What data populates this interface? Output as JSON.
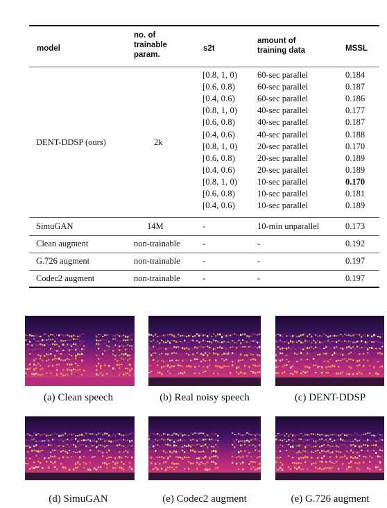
{
  "table": {
    "headers": {
      "model": "model",
      "params": [
        "no. of",
        "trainable",
        "param."
      ],
      "s2t": "s2t",
      "amount": [
        "amount of",
        "training data"
      ],
      "mssl": "MSSL"
    },
    "dent": {
      "model": "DENT-DDSP (ours)",
      "params": "2k",
      "rows": [
        {
          "s2t": "[0.8, 1, 0)",
          "amount": "60-sec parallel",
          "mssl": "0.184",
          "bold": false
        },
        {
          "s2t": "[0.6, 0.8)",
          "amount": "60-sec parallel",
          "mssl": "0.187",
          "bold": false
        },
        {
          "s2t": "[0.4, 0.6)",
          "amount": "60-sec parallel",
          "mssl": "0.186",
          "bold": false
        },
        {
          "s2t": "[0.8, 1, 0)",
          "amount": "40-sec parallel",
          "mssl": "0.177",
          "bold": false
        },
        {
          "s2t": "[0.6, 0.8)",
          "amount": "40-sec parallel",
          "mssl": "0.187",
          "bold": false
        },
        {
          "s2t": "[0.4, 0.6)",
          "amount": "40-sec parallel",
          "mssl": "0.188",
          "bold": false
        },
        {
          "s2t": "[0.8, 1, 0)",
          "amount": "20-sec parallel",
          "mssl": "0.170",
          "bold": false
        },
        {
          "s2t": "[0.6, 0.8)",
          "amount": "20-sec parallel",
          "mssl": "0.189",
          "bold": false
        },
        {
          "s2t": "[0.4, 0.6)",
          "amount": "20-sec parallel",
          "mssl": "0.189",
          "bold": false
        },
        {
          "s2t": "[0.8, 1, 0)",
          "amount": "10-sec parallel",
          "mssl": "0.170",
          "bold": true
        },
        {
          "s2t": "[0.6, 0.8)",
          "amount": "10-sec parallel",
          "mssl": "0.181",
          "bold": false
        },
        {
          "s2t": "[0.4, 0.6)",
          "amount": "10-sec parallel",
          "mssl": "0.189",
          "bold": false
        }
      ]
    },
    "others": [
      {
        "model": "SimuGAN",
        "params": "14M",
        "s2t": "-",
        "amount": "10-min unparallel",
        "mssl": "0.173"
      },
      {
        "model": "Clean augment",
        "params": "non-trainable",
        "s2t": "-",
        "amount": "-",
        "mssl": "0.192"
      },
      {
        "model": "G.726 augment",
        "params": "non-trainable",
        "s2t": "-",
        "amount": "-",
        "mssl": "0.197"
      },
      {
        "model": "Codec2 augment",
        "params": "non-trainable",
        "s2t": "-",
        "amount": "-",
        "mssl": "0.197"
      }
    ]
  },
  "figures": [
    {
      "caption": "(a) Clean speech",
      "variant": "clean"
    },
    {
      "caption": "(b) Real noisy speech",
      "variant": "noisy"
    },
    {
      "caption": "(c) DENT-DDSP",
      "variant": "dent"
    },
    {
      "caption": "(d) SimuGAN",
      "variant": "simugan"
    },
    {
      "caption": "(e) Codec2 augment",
      "variant": "codec2"
    },
    {
      "caption": "(e) G.726 augment",
      "variant": "g726"
    }
  ],
  "colors": {
    "spec_dark": "#1a0a2e",
    "spec_mid": "#b2297a",
    "spec_hot": "#f6b53c",
    "spec_peak": "#fff2a8"
  }
}
